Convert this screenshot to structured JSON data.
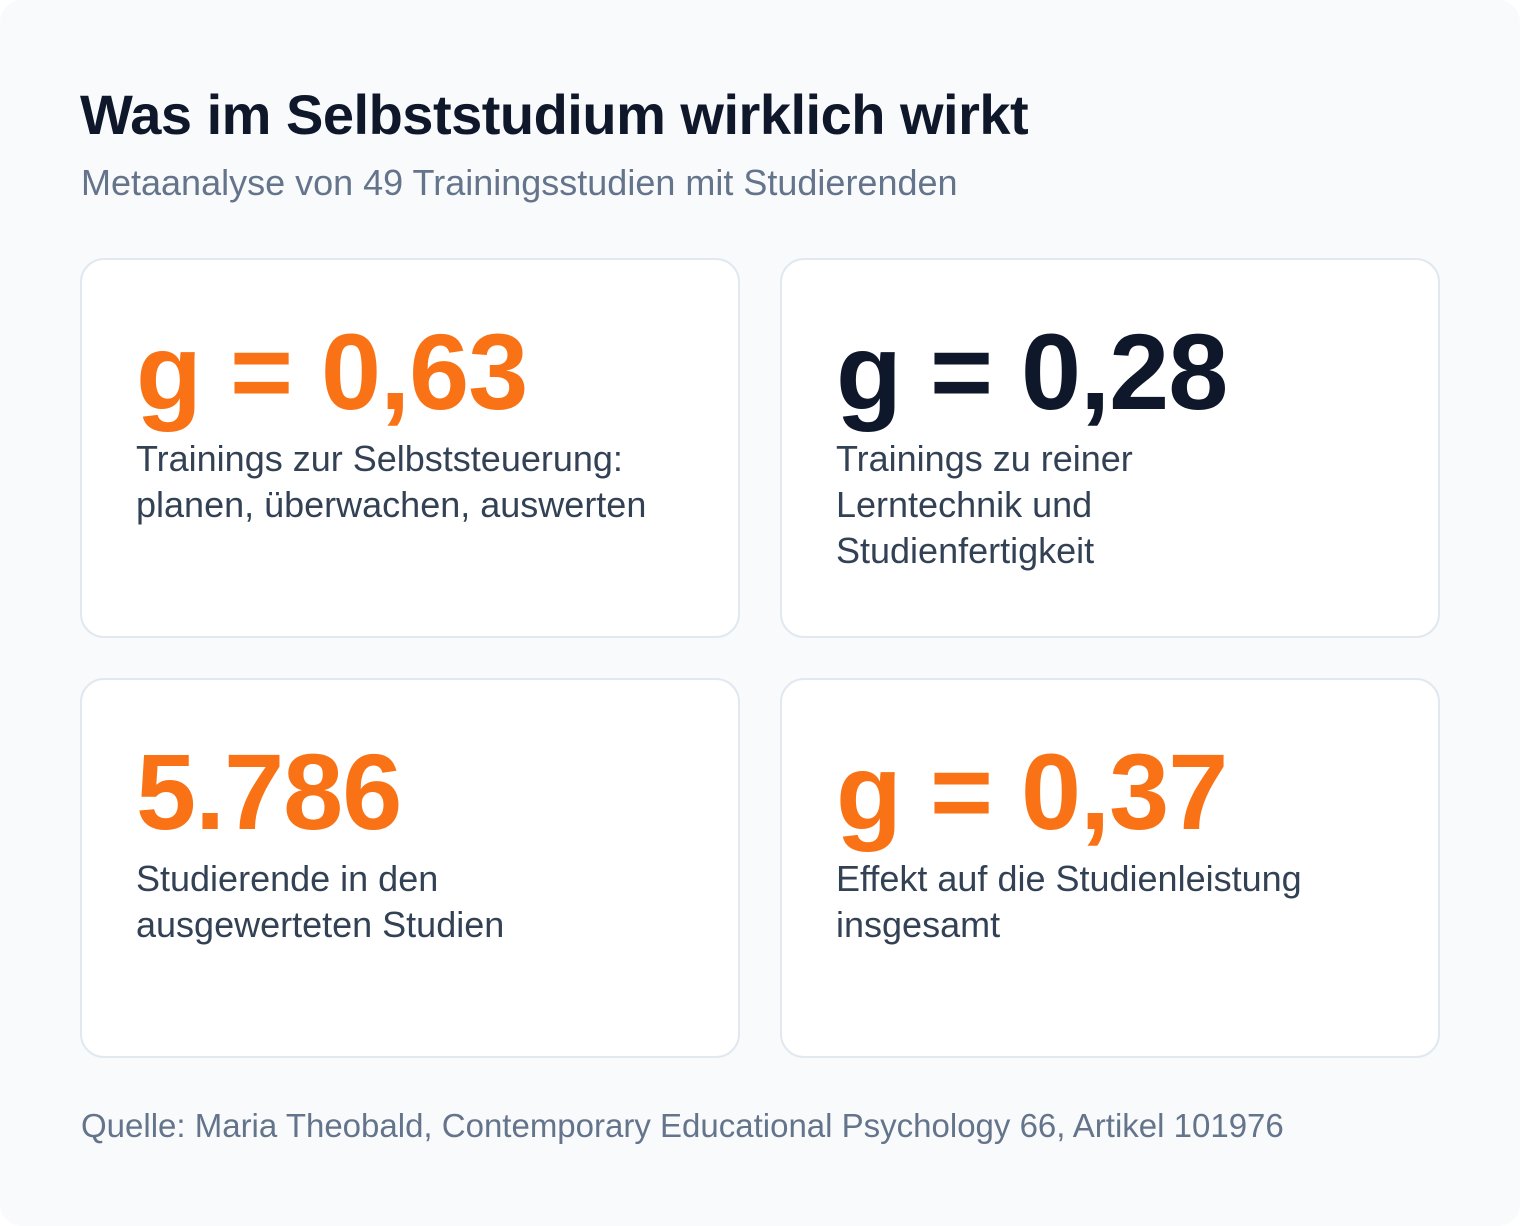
{
  "header": {
    "title": "Was im Selbststudium wirklich wirkt",
    "subtitle": "Metaanalyse von 49 Trainingsstudien mit Studierenden"
  },
  "cards": [
    {
      "value": "g = 0,63",
      "description": "Trainings zur Selbststeuerung: planen, überwachen, auswerten",
      "value_color": "#f97316"
    },
    {
      "value": "g = 0,28",
      "description": "Trainings zu reiner Lerntechnik und Studienfertigkeit",
      "value_color": "#0f172a"
    },
    {
      "value": "5.786",
      "description": "Studierende in den ausgewerteten Studien",
      "value_color": "#f97316"
    },
    {
      "value": "g = 0,37",
      "description": "Effekt auf die Studienleistung insgesamt",
      "value_color": "#f97316"
    }
  ],
  "footer": {
    "source": "Quelle: Maria Theobald, Contemporary Educational Psychology 66, Artikel 101976"
  },
  "colors": {
    "accent": "#f97316",
    "dark": "#0f172a",
    "muted": "#64748b",
    "background": "#f8fafc",
    "card_border": "#e2e8f0"
  }
}
